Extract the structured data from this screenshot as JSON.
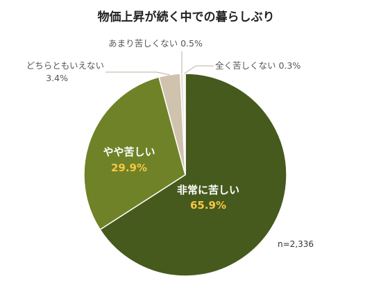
{
  "chart_data": {
    "type": "pie",
    "title": "物価上昇が続く中での暮らしぶり",
    "note": "n=2,336",
    "slices": [
      {
        "label": "非常に苦しい",
        "value": 65.9,
        "value_text": "65.9%",
        "color": "#475a1e",
        "label_position": "inside"
      },
      {
        "label": "やや苦しい",
        "value": 29.9,
        "value_text": "29.9%",
        "color": "#6f8227",
        "label_position": "inside"
      },
      {
        "label": "どちらともいえない",
        "value": 3.4,
        "value_text": "3.4%",
        "color": "#cfc3ae",
        "label_position": "outside"
      },
      {
        "label": "あまり苦しくない",
        "value": 0.5,
        "value_text": "0.5%",
        "color": "#e8e2d6",
        "label_position": "outside"
      },
      {
        "label": "全く苦しくない",
        "value": 0.3,
        "value_text": "0.3%",
        "color": "#f3efe7",
        "label_position": "outside"
      }
    ]
  }
}
